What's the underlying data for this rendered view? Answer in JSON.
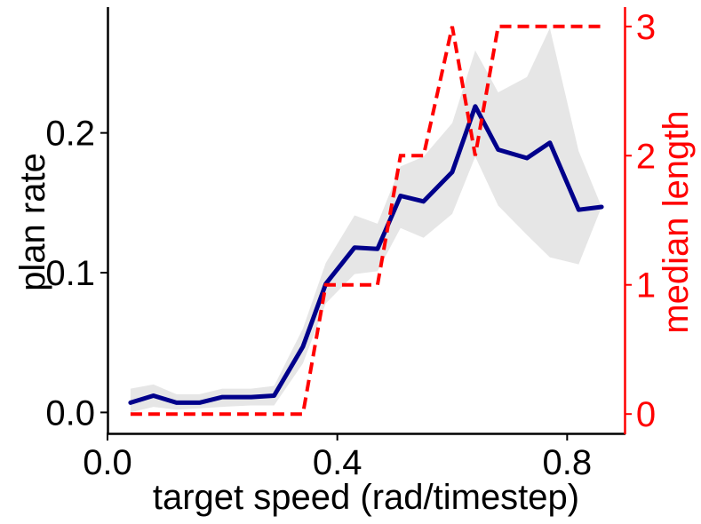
{
  "chart_data": {
    "type": "line",
    "xlabel": "target speed (rad/timestep)",
    "ylabel": "plan rate",
    "y2label": "median length",
    "xlim": [
      0.0,
      0.9
    ],
    "ylim": [
      -0.015,
      0.29
    ],
    "y2lim": [
      -0.15,
      3.15
    ],
    "x_ticks": [
      0.0,
      0.4,
      0.8
    ],
    "x_tick_labels": [
      "0.0",
      "0.4",
      "0.8"
    ],
    "y_ticks": [
      0.0,
      0.1,
      0.2
    ],
    "y_tick_labels": [
      "0.0",
      "0.1",
      "0.2"
    ],
    "y2_ticks": [
      0,
      1,
      2,
      3
    ],
    "y2_tick_labels": [
      "0",
      "1",
      "2",
      "3"
    ],
    "grid": false,
    "colors": {
      "plan_rate": "#00008b",
      "band": "#e6e6e6",
      "median_length": "#ff0000"
    },
    "series": [
      {
        "axis": "left",
        "style": "solid",
        "x": [
          0.04,
          0.08,
          0.12,
          0.16,
          0.2,
          0.25,
          0.29,
          0.34,
          0.38,
          0.43,
          0.47,
          0.51,
          0.55,
          0.6,
          0.64,
          0.68,
          0.73,
          0.77,
          0.82,
          0.86
        ],
        "values": [
          0.007,
          0.012,
          0.007,
          0.007,
          0.011,
          0.011,
          0.012,
          0.047,
          0.092,
          0.118,
          0.117,
          0.155,
          0.151,
          0.172,
          0.219,
          0.188,
          0.182,
          0.193,
          0.145,
          0.147
        ],
        "lower": [
          0.0,
          0.004,
          0.002,
          0.003,
          0.004,
          0.005,
          0.005,
          0.035,
          0.078,
          0.099,
          0.101,
          0.132,
          0.125,
          0.142,
          0.183,
          0.148,
          0.127,
          0.111,
          0.106,
          0.147
        ],
        "upper": [
          0.017,
          0.02,
          0.013,
          0.013,
          0.017,
          0.017,
          0.019,
          0.06,
          0.107,
          0.141,
          0.135,
          0.176,
          0.183,
          0.207,
          0.259,
          0.229,
          0.24,
          0.275,
          0.187,
          0.147
        ]
      },
      {
        "axis": "right",
        "style": "dashed",
        "x": [
          0.04,
          0.08,
          0.12,
          0.16,
          0.2,
          0.25,
          0.29,
          0.34,
          0.38,
          0.43,
          0.47,
          0.51,
          0.55,
          0.6,
          0.64,
          0.68,
          0.73,
          0.77,
          0.82,
          0.86
        ],
        "values": [
          0,
          0,
          0,
          0,
          0,
          0,
          0,
          0,
          1,
          1,
          1,
          2,
          2,
          3,
          2,
          3,
          3,
          3,
          3,
          3
        ]
      }
    ]
  }
}
